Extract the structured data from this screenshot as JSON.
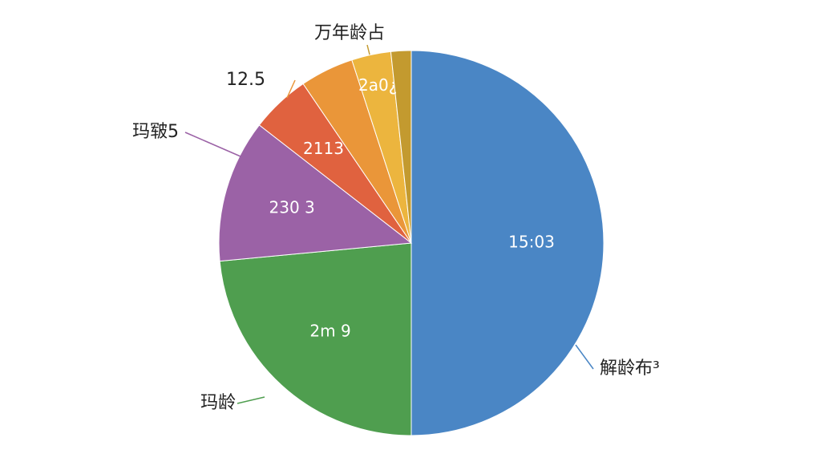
{
  "chart_data": {
    "type": "pie",
    "title": "万年龄占",
    "categories": [
      "解龄布³",
      "玛龄",
      "玛皲5",
      "12.5",
      null,
      null,
      null
    ],
    "values": [
      50,
      23.5,
      12,
      5,
      4.5,
      3.3,
      1.7
    ],
    "colors": [
      "#4a86c5",
      "#4f9e4f",
      "#9b62a6",
      "#e0623f",
      "#ea9639",
      "#ecb53e",
      "#c39a2f"
    ],
    "annotations": [
      "15:03",
      "2m 9",
      "230 3",
      "2113",
      "2a0¿"
    ]
  }
}
